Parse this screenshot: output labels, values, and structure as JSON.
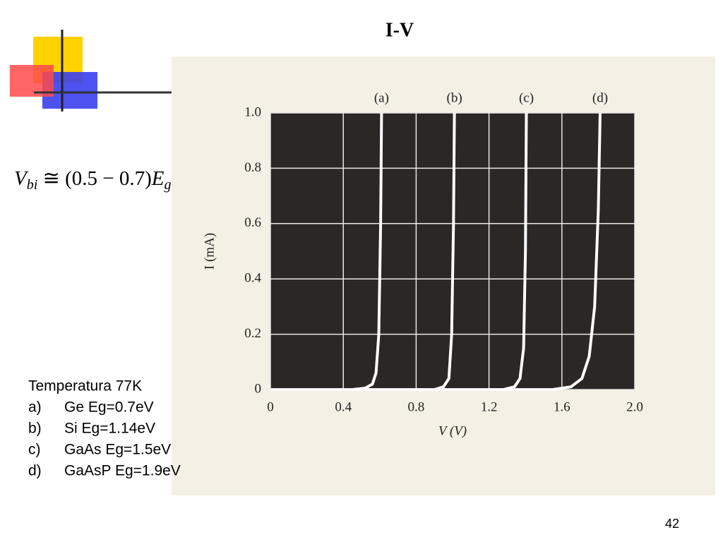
{
  "title": "I-V",
  "formula": {
    "v": "V",
    "v_sub": "bi",
    "middle": " ≅ (0.5 − 0.7)",
    "e": "E",
    "e_sub": "g"
  },
  "notes": {
    "heading": "Temperatura 77K",
    "items": [
      {
        "marker": "a)",
        "text": "Ge Eg=0.7eV"
      },
      {
        "marker": "b)",
        "text": "Si Eg=1.14eV"
      },
      {
        "marker": "c)",
        "text": "GaAs Eg=1.5eV"
      },
      {
        "marker": "d)",
        "text": "GaAsP Eg=1.9eV"
      }
    ]
  },
  "page_number": "42",
  "chart_data": {
    "type": "line",
    "x_label": "V (V)",
    "y_label": "I (mA)",
    "xlim": [
      0,
      2.0
    ],
    "ylim": [
      0,
      1.0
    ],
    "xticks": [
      0,
      0.4,
      0.8,
      1.2,
      1.6,
      {
        "value": 2.0,
        "label": "2.0"
      }
    ],
    "yticks": [
      0,
      0.2,
      0.4,
      0.6,
      0.8,
      {
        "value": 1.0,
        "label": "1.0"
      }
    ],
    "grid": true,
    "background": "#2b2725",
    "series": [
      {
        "name": "(a)",
        "color": "#ffffff",
        "x": [
          0,
          0.45,
          0.52,
          0.56,
          0.58,
          0.595,
          0.605,
          0.61
        ],
        "values": [
          0,
          0,
          0.005,
          0.02,
          0.06,
          0.2,
          0.6,
          1.0
        ]
      },
      {
        "name": "(b)",
        "color": "#ffffff",
        "x": [
          0,
          0.9,
          0.95,
          0.98,
          0.995,
          1.005,
          1.01
        ],
        "values": [
          0,
          0,
          0.01,
          0.04,
          0.2,
          0.6,
          1.0
        ]
      },
      {
        "name": "(c)",
        "color": "#ffffff",
        "x": [
          0,
          1.28,
          1.34,
          1.37,
          1.39,
          1.4,
          1.405
        ],
        "values": [
          0,
          0,
          0.01,
          0.04,
          0.15,
          0.5,
          1.0
        ]
      },
      {
        "name": "(d)",
        "color": "#ffffff",
        "x": [
          0,
          1.55,
          1.65,
          1.71,
          1.75,
          1.78,
          1.8,
          1.81
        ],
        "values": [
          0,
          0,
          0.01,
          0.04,
          0.12,
          0.3,
          0.65,
          1.0
        ]
      }
    ]
  }
}
